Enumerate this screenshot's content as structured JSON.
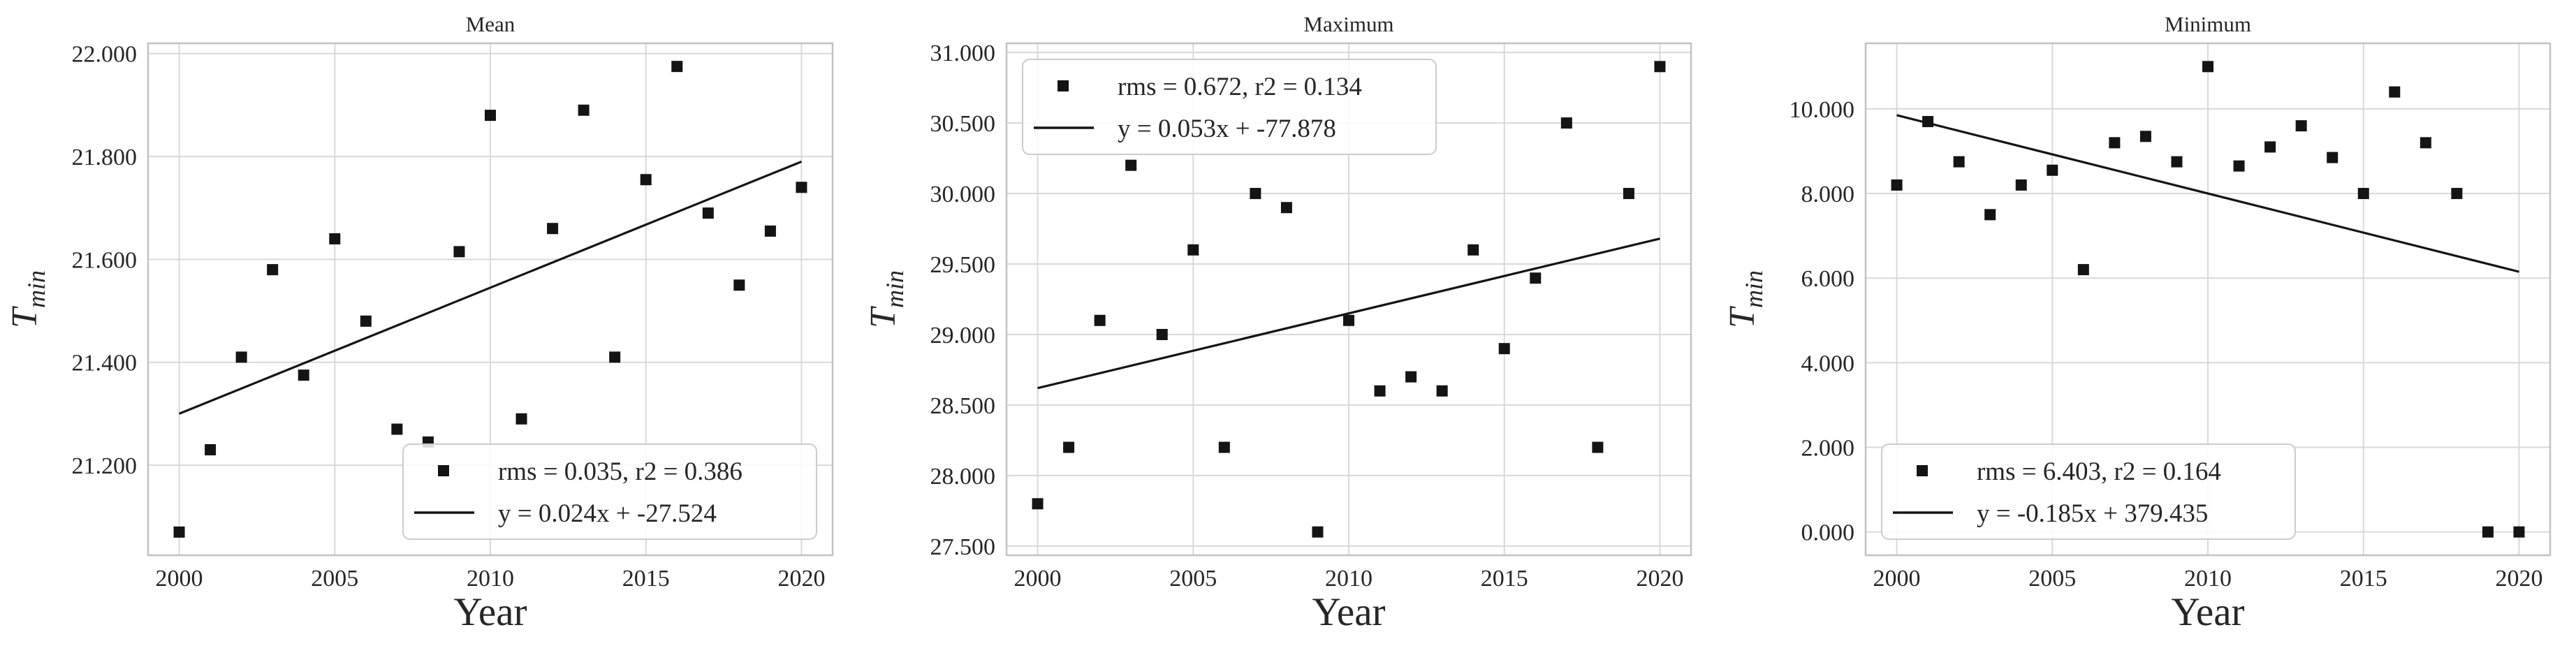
{
  "figure": {
    "background": "#ffffff",
    "text_color": "#262626",
    "grid_color": "#d9d9d9",
    "spine_color": "#c2c2c2",
    "marker_color": "#141414",
    "trend_color": "#141414",
    "legend_border_color": "#cccccc",
    "legend_fill": "rgba(255,255,255,0.85)"
  },
  "chart_data": [
    {
      "type": "scatter",
      "title": "Mean",
      "xlabel": "Year",
      "ylabel_main": "T",
      "ylabel_sub": "min",
      "xlim": [
        1999,
        2021
      ],
      "ylim": [
        21.025,
        22.02
      ],
      "xticks": [
        2000,
        2005,
        2010,
        2015,
        2020
      ],
      "xtick_labels": [
        "2000",
        "2005",
        "2010",
        "2015",
        "2020"
      ],
      "yticks": [
        21.2,
        21.4,
        21.6,
        21.8,
        22.0
      ],
      "ytick_labels": [
        "21.200",
        "21.400",
        "21.600",
        "21.800",
        "22.000"
      ],
      "grid": true,
      "x": [
        2000,
        2001,
        2002,
        2003,
        2004,
        2005,
        2006,
        2007,
        2008,
        2009,
        2010,
        2011,
        2012,
        2013,
        2014,
        2015,
        2016,
        2017,
        2018,
        2019,
        2020
      ],
      "values": [
        21.07,
        21.23,
        21.41,
        21.58,
        21.375,
        21.64,
        21.48,
        21.27,
        21.245,
        21.615,
        21.88,
        21.29,
        21.66,
        21.89,
        21.41,
        21.755,
        21.975,
        21.69,
        21.55,
        21.655,
        21.74
      ],
      "trendline": {
        "x1": 2000,
        "y1": 21.3,
        "x2": 2020,
        "y2": 21.79
      },
      "legend": {
        "position": "lower-right",
        "entries": [
          {
            "sample": "marker",
            "label": "rms = 0.035, r2 = 0.386"
          },
          {
            "sample": "line",
            "label": "y = 0.024x + -27.524"
          }
        ]
      }
    },
    {
      "type": "scatter",
      "title": "Maximum",
      "xlabel": "Year",
      "ylabel_main": "T",
      "ylabel_sub": "min",
      "xlim": [
        1999,
        2021
      ],
      "ylim": [
        27.435,
        31.065
      ],
      "xticks": [
        2000,
        2005,
        2010,
        2015,
        2020
      ],
      "xtick_labels": [
        "2000",
        "2005",
        "2010",
        "2015",
        "2020"
      ],
      "yticks": [
        27.5,
        28.0,
        28.5,
        29.0,
        29.5,
        30.0,
        30.5,
        31.0
      ],
      "ytick_labels": [
        "27.500",
        "28.000",
        "28.500",
        "29.000",
        "29.500",
        "30.000",
        "30.500",
        "31.000"
      ],
      "grid": true,
      "x": [
        2000,
        2001,
        2002,
        2003,
        2004,
        2005,
        2006,
        2007,
        2008,
        2009,
        2010,
        2011,
        2012,
        2013,
        2014,
        2015,
        2016,
        2017,
        2018,
        2019,
        2020
      ],
      "values": [
        27.8,
        28.2,
        29.1,
        30.2,
        29.0,
        29.6,
        28.2,
        30.0,
        29.9,
        27.6,
        29.1,
        28.6,
        28.7,
        28.6,
        29.6,
        28.9,
        29.4,
        30.5,
        28.2,
        30.0,
        30.9
      ],
      "trendline": {
        "x1": 2000,
        "y1": 28.62,
        "x2": 2020,
        "y2": 29.68
      },
      "legend": {
        "position": "upper-left",
        "entries": [
          {
            "sample": "marker",
            "label": "rms = 0.672, r2 = 0.134"
          },
          {
            "sample": "line",
            "label": "y = 0.053x + -77.878"
          }
        ]
      }
    },
    {
      "type": "scatter",
      "title": "Minimum",
      "xlabel": "Year",
      "ylabel_main": "T",
      "ylabel_sub": "min",
      "xlim": [
        1999,
        2021
      ],
      "ylim": [
        -0.55,
        11.55
      ],
      "xticks": [
        2000,
        2005,
        2010,
        2015,
        2020
      ],
      "xtick_labels": [
        "2000",
        "2005",
        "2010",
        "2015",
        "2020"
      ],
      "yticks": [
        0,
        2,
        4,
        6,
        8,
        10
      ],
      "ytick_labels": [
        "0.000",
        "2.000",
        "4.000",
        "6.000",
        "8.000",
        "10.000"
      ],
      "grid": true,
      "x": [
        2000,
        2001,
        2002,
        2003,
        2004,
        2005,
        2006,
        2007,
        2008,
        2009,
        2010,
        2011,
        2012,
        2013,
        2014,
        2015,
        2016,
        2017,
        2018,
        2019,
        2020
      ],
      "values": [
        8.2,
        9.7,
        8.75,
        7.5,
        8.2,
        8.55,
        6.2,
        9.2,
        9.35,
        8.75,
        11.0,
        8.65,
        9.1,
        9.6,
        8.85,
        8.0,
        10.4,
        9.2,
        8.0,
        0.0,
        0.0
      ],
      "trendline": {
        "x1": 2000,
        "y1": 9.85,
        "x2": 2020,
        "y2": 6.15
      },
      "legend": {
        "position": "lower-left",
        "entries": [
          {
            "sample": "marker",
            "label": "rms = 6.403, r2 = 0.164"
          },
          {
            "sample": "line",
            "label": "y = -0.185x + 379.435"
          }
        ]
      }
    }
  ]
}
